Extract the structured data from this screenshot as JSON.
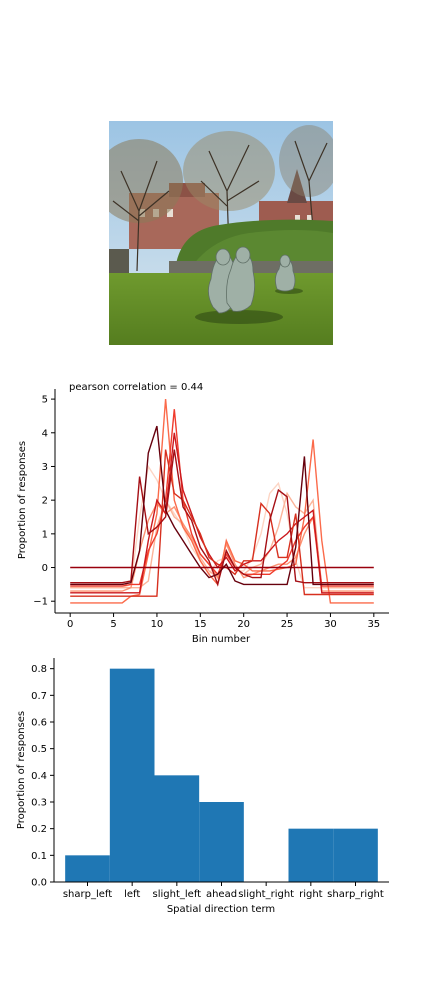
{
  "chart_data": [
    {
      "type": "line",
      "title": "pearson correlation = 0.44",
      "xlabel": "Bin number",
      "ylabel": "Proportion of responses",
      "xlim": [
        -1.75,
        36.75
      ],
      "ylim": [
        -1.35,
        5.3
      ],
      "xticks": [
        0,
        5,
        10,
        15,
        20,
        25,
        30,
        35
      ],
      "yticks": [
        -1,
        0,
        1,
        2,
        3,
        4,
        5
      ],
      "grid": false,
      "x": [
        0,
        1,
        2,
        3,
        4,
        5,
        6,
        7,
        8,
        9,
        10,
        11,
        12,
        13,
        14,
        15,
        16,
        17,
        18,
        19,
        20,
        21,
        22,
        23,
        24,
        25,
        26,
        27,
        28,
        29,
        30,
        31,
        32,
        33,
        34,
        35
      ],
      "series": [
        {
          "color": "#fdd5c4",
          "values": [
            -0.6,
            -0.6,
            -0.6,
            -0.6,
            -0.6,
            -0.6,
            -0.6,
            -0.5,
            1.5,
            3.0,
            2.6,
            2.0,
            1.6,
            1.2,
            0.6,
            0.2,
            -0.2,
            0.2,
            0.3,
            -0.1,
            -0.1,
            0.3,
            1.0,
            2.2,
            2.5,
            1.6,
            0.2,
            -0.6,
            -0.6,
            -0.6,
            -0.6,
            -0.6,
            -0.6,
            -0.6,
            -0.6,
            -0.6
          ]
        },
        {
          "color": "#fcb499",
          "values": [
            -0.6,
            -0.6,
            -0.6,
            -0.6,
            -0.6,
            -0.6,
            -0.6,
            -0.6,
            -0.6,
            -0.4,
            1.2,
            2.0,
            1.5,
            1.3,
            0.8,
            0.3,
            -0.1,
            -0.3,
            0.5,
            0.0,
            -0.2,
            0.0,
            0.1,
            0.5,
            1.2,
            2.2,
            1.8,
            1.6,
            2.0,
            -0.6,
            -0.6,
            -0.6,
            -0.6,
            -0.6,
            -0.6,
            -0.6
          ]
        },
        {
          "color": "#fc9272",
          "values": [
            -0.7,
            -0.7,
            -0.7,
            -0.7,
            -0.7,
            -0.7,
            -0.7,
            -0.6,
            0.5,
            1.4,
            1.9,
            1.6,
            1.8,
            1.3,
            0.9,
            0.4,
            0.1,
            -0.3,
            0.7,
            0.1,
            -0.3,
            -0.2,
            -0.1,
            0.0,
            0.1,
            0.1,
            0.3,
            1.0,
            1.5,
            -0.7,
            -0.7,
            -0.7,
            -0.7,
            -0.7,
            -0.7,
            -0.7
          ]
        },
        {
          "color": "#fb6a4a",
          "values": [
            -1.05,
            -1.05,
            -1.05,
            -1.05,
            -1.05,
            -1.05,
            -1.05,
            -0.85,
            -0.8,
            0.4,
            1.6,
            5.0,
            2.0,
            1.2,
            0.8,
            0.2,
            -0.2,
            -0.5,
            0.8,
            0.2,
            0.1,
            -0.1,
            -0.1,
            -0.1,
            -0.05,
            0.0,
            0.1,
            1.5,
            3.8,
            0.8,
            -1.05,
            -1.05,
            -1.05,
            -1.05,
            -1.05,
            -1.05
          ]
        },
        {
          "color": "#ef3b2c",
          "values": [
            -0.55,
            -0.55,
            -0.55,
            -0.55,
            -0.55,
            -0.55,
            -0.55,
            -0.5,
            -0.5,
            0.5,
            1.0,
            2.0,
            4.7,
            2.0,
            1.0,
            0.4,
            0.1,
            -0.2,
            0.4,
            0.0,
            -0.2,
            -0.2,
            -0.2,
            -0.2,
            0.0,
            0.2,
            0.8,
            1.2,
            1.5,
            -0.55,
            -0.55,
            -0.55,
            -0.55,
            -0.55,
            -0.55,
            -0.55
          ]
        },
        {
          "color": "#cb181d",
          "values": [
            -0.75,
            -0.75,
            -0.75,
            -0.75,
            -0.75,
            -0.75,
            -0.75,
            -0.75,
            -0.75,
            0.8,
            2.0,
            1.6,
            4.0,
            2.3,
            1.6,
            0.9,
            0.4,
            0.0,
            0.3,
            -0.1,
            0.1,
            0.2,
            0.2,
            0.5,
            0.8,
            1.0,
            1.3,
            1.5,
            1.7,
            -0.75,
            -0.75,
            -0.75,
            -0.75,
            -0.75,
            -0.75,
            -0.75
          ]
        },
        {
          "color": "#d7301f",
          "values": [
            -0.85,
            -0.85,
            -0.85,
            -0.85,
            -0.85,
            -0.85,
            -0.85,
            -0.85,
            -0.85,
            -0.85,
            -0.85,
            3.5,
            2.2,
            2.0,
            1.5,
            1.0,
            0.3,
            0.1,
            0.0,
            -0.2,
            0.2,
            0.2,
            1.9,
            1.6,
            0.3,
            0.3,
            1.6,
            -0.8,
            -0.8,
            -0.8,
            -0.8,
            -0.8,
            -0.8,
            -0.8,
            -0.8,
            -0.8
          ]
        },
        {
          "color": "#a50f15",
          "values": [
            -0.45,
            -0.45,
            -0.45,
            -0.45,
            -0.45,
            -0.45,
            -0.45,
            -0.4,
            2.7,
            1.0,
            1.2,
            1.5,
            3.5,
            1.8,
            1.4,
            0.6,
            0.2,
            -0.5,
            0.5,
            0.0,
            -0.2,
            -0.3,
            -0.3,
            1.4,
            2.3,
            2.1,
            -0.4,
            -0.45,
            -0.45,
            -0.45,
            -0.45,
            -0.45,
            -0.45,
            -0.45,
            -0.45,
            -0.45
          ]
        },
        {
          "color": "#99000d",
          "values": [
            0.0,
            0.0,
            0.0,
            0.0,
            0.0,
            0.0,
            0.0,
            0.0,
            0.0,
            0.0,
            0.0,
            0.0,
            0.0,
            0.0,
            0.0,
            0.0,
            0.0,
            0.0,
            0.0,
            0.0,
            0.0,
            0.0,
            0.0,
            0.0,
            0.0,
            0.0,
            0.0,
            0.0,
            0.0,
            0.0,
            0.0,
            0.0,
            0.0,
            0.0,
            0.0,
            0.0
          ]
        },
        {
          "color": "#67000d",
          "values": [
            -0.5,
            -0.5,
            -0.5,
            -0.5,
            -0.5,
            -0.5,
            -0.5,
            -0.45,
            0.5,
            3.4,
            4.2,
            1.7,
            1.2,
            0.8,
            0.4,
            0.0,
            -0.3,
            -0.2,
            0.1,
            -0.4,
            -0.5,
            -0.5,
            -0.5,
            -0.5,
            -0.5,
            -0.5,
            0.6,
            3.3,
            -0.5,
            -0.5,
            -0.5,
            -0.5,
            -0.5,
            -0.5,
            -0.5,
            -0.5
          ]
        }
      ]
    },
    {
      "type": "bar",
      "xlabel": "Spatial direction term",
      "ylabel": "Proportion of responses",
      "categories": [
        "sharp_left",
        "left",
        "slight_left",
        "ahead",
        "slight_right",
        "right",
        "sharp_right"
      ],
      "values": [
        0.1,
        0.8,
        0.4,
        0.3,
        0.0,
        0.2,
        0.2
      ],
      "ylim": [
        0,
        0.84
      ],
      "yticks": [
        0.0,
        0.1,
        0.2,
        0.3,
        0.4,
        0.5,
        0.6,
        0.7,
        0.8
      ],
      "ytick_labels": [
        "0.0",
        "0.1",
        "0.2",
        "0.3",
        "0.4",
        "0.5",
        "0.6",
        "0.7",
        "0.8"
      ],
      "bar_color": "#1f77b4",
      "grid": false
    }
  ]
}
